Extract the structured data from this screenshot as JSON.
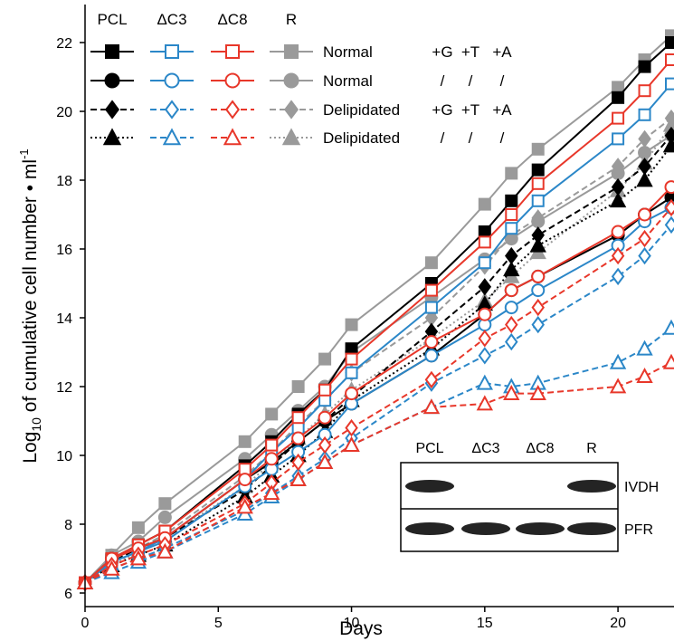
{
  "chart_data": {
    "type": "line",
    "xlabel": "Days",
    "ylabel_parts": {
      "pre": "Log",
      "sub": "10",
      "mid": " of cumulative cell number • ml",
      "sup": "-1"
    },
    "xlim": [
      0,
      22
    ],
    "ylim": [
      6,
      22.5
    ],
    "xticks": [
      0,
      5,
      10,
      15,
      20
    ],
    "yticks": [
      6,
      8,
      10,
      12,
      14,
      16,
      18,
      20,
      22
    ],
    "grid": false,
    "legend_position": "top-left",
    "legend": {
      "column_headers": [
        "PCL",
        "ΔC3",
        "ΔC8",
        "R"
      ],
      "rows": [
        {
          "condition": "Normal",
          "supplements": [
            "+G",
            "+T",
            "+A"
          ]
        },
        {
          "condition": "Normal",
          "supplements": [
            "/",
            "/",
            "/"
          ]
        },
        {
          "condition": "Delipidated",
          "supplements": [
            "+G",
            "+T",
            "+A"
          ]
        },
        {
          "condition": "Delipidated",
          "supplements": [
            "/",
            "/",
            "/"
          ]
        }
      ]
    },
    "strain_colors": {
      "PCL": "#000000",
      "dC3": "#2b87c8",
      "dC8": "#e8372a",
      "R": "#9a9a9a"
    },
    "series": [
      {
        "strain": "PCL",
        "row": 0,
        "marker": "square",
        "filled": true,
        "dash": "solid",
        "color": "#000000",
        "x": [
          0,
          1,
          2,
          3,
          6,
          7,
          8,
          9,
          10,
          13,
          15,
          16,
          17,
          20,
          21,
          22
        ],
        "y": [
          6.3,
          7.0,
          7.4,
          7.8,
          9.7,
          10.4,
          11.2,
          11.9,
          13.1,
          15.0,
          16.5,
          17.4,
          18.3,
          20.4,
          21.3,
          22.0
        ]
      },
      {
        "strain": "PCL",
        "row": 1,
        "marker": "circle",
        "filled": true,
        "dash": "solid",
        "color": "#000000",
        "x": [
          0,
          1,
          2,
          3,
          6,
          7,
          8,
          9,
          10,
          13,
          15,
          16,
          17,
          20,
          21,
          22
        ],
        "y": [
          6.3,
          7.0,
          7.3,
          7.6,
          9.3,
          9.8,
          10.4,
          11.0,
          11.5,
          12.9,
          14.1,
          14.8,
          15.2,
          16.4,
          17.0,
          17.5
        ]
      },
      {
        "strain": "PCL",
        "row": 2,
        "marker": "diamond",
        "filled": true,
        "dash": "dashed",
        "color": "#000000",
        "x": [
          0,
          1,
          2,
          3,
          6,
          7,
          8,
          9,
          10,
          13,
          15,
          16,
          17,
          20,
          21,
          22
        ],
        "y": [
          6.3,
          6.9,
          7.3,
          7.6,
          9.0,
          9.7,
          10.4,
          11.0,
          11.7,
          13.6,
          14.9,
          15.8,
          16.4,
          17.8,
          18.4,
          19.3
        ]
      },
      {
        "strain": "PCL",
        "row": 3,
        "marker": "triangle",
        "filled": true,
        "dash": "dotted",
        "color": "#000000",
        "x": [
          0,
          1,
          2,
          3,
          6,
          7,
          8,
          9,
          10,
          13,
          15,
          16,
          17,
          20,
          21,
          22
        ],
        "y": [
          6.3,
          6.8,
          7.1,
          7.4,
          8.8,
          9.4,
          10.0,
          10.7,
          11.6,
          13.1,
          14.4,
          15.4,
          16.1,
          17.4,
          18.0,
          19.0
        ]
      },
      {
        "strain": "dC3",
        "row": 0,
        "marker": "square",
        "filled": false,
        "dash": "solid",
        "color": "#2b87c8",
        "x": [
          0,
          1,
          2,
          3,
          6,
          7,
          8,
          9,
          10,
          13,
          15,
          16,
          17,
          20,
          21,
          22
        ],
        "y": [
          6.3,
          6.9,
          7.2,
          7.6,
          9.3,
          10.1,
          10.8,
          11.6,
          12.4,
          14.3,
          15.6,
          16.6,
          17.4,
          19.2,
          19.9,
          20.8
        ]
      },
      {
        "strain": "dC3",
        "row": 1,
        "marker": "circle",
        "filled": false,
        "dash": "solid",
        "color": "#2b87c8",
        "x": [
          0,
          1,
          2,
          3,
          6,
          7,
          8,
          9,
          10,
          13,
          15,
          16,
          17,
          20,
          21,
          22
        ],
        "y": [
          6.3,
          6.9,
          7.2,
          7.5,
          9.1,
          9.6,
          10.1,
          10.6,
          11.5,
          12.9,
          13.8,
          14.3,
          14.8,
          16.1,
          16.8,
          17.2
        ]
      },
      {
        "strain": "dC3",
        "row": 2,
        "marker": "diamond",
        "filled": false,
        "dash": "dashed",
        "color": "#2b87c8",
        "x": [
          0,
          1,
          2,
          3,
          6,
          7,
          8,
          9,
          10,
          13,
          15,
          16,
          17,
          20,
          21,
          22
        ],
        "y": [
          6.3,
          6.7,
          7.0,
          7.3,
          8.4,
          8.9,
          9.4,
          9.9,
          10.5,
          12.1,
          12.9,
          13.3,
          13.8,
          15.2,
          15.8,
          16.7
        ]
      },
      {
        "strain": "dC3",
        "row": 3,
        "marker": "triangle",
        "filled": false,
        "dash": "dashed",
        "color": "#2b87c8",
        "x": [
          0,
          1,
          2,
          3,
          6,
          7,
          8,
          9,
          10,
          13,
          15,
          16,
          17,
          20,
          21,
          22
        ],
        "y": [
          6.3,
          6.6,
          6.9,
          7.2,
          8.3,
          8.8,
          9.3,
          9.8,
          10.3,
          11.4,
          12.1,
          12.0,
          12.1,
          12.7,
          13.1,
          13.7
        ]
      },
      {
        "strain": "dC8",
        "row": 0,
        "marker": "square",
        "filled": false,
        "dash": "solid",
        "color": "#e8372a",
        "x": [
          0,
          1,
          2,
          3,
          6,
          7,
          8,
          9,
          10,
          13,
          15,
          16,
          17,
          20,
          21,
          22
        ],
        "y": [
          6.3,
          7.0,
          7.4,
          7.8,
          9.6,
          10.3,
          11.1,
          11.9,
          12.8,
          14.8,
          16.2,
          17.0,
          17.9,
          19.8,
          20.6,
          21.5
        ]
      },
      {
        "strain": "dC8",
        "row": 1,
        "marker": "circle",
        "filled": false,
        "dash": "solid",
        "color": "#e8372a",
        "x": [
          0,
          1,
          2,
          3,
          6,
          7,
          8,
          9,
          10,
          13,
          15,
          16,
          17,
          20,
          21,
          22
        ],
        "y": [
          6.3,
          7.0,
          7.3,
          7.6,
          9.3,
          9.9,
          10.5,
          11.1,
          11.8,
          13.3,
          14.1,
          14.8,
          15.2,
          16.5,
          17.0,
          17.8
        ]
      },
      {
        "strain": "dC8",
        "row": 2,
        "marker": "diamond",
        "filled": false,
        "dash": "dashed",
        "color": "#e8372a",
        "x": [
          0,
          1,
          2,
          3,
          6,
          7,
          8,
          9,
          10,
          13,
          15,
          16,
          17,
          20,
          21,
          22
        ],
        "y": [
          6.3,
          6.8,
          7.1,
          7.4,
          8.6,
          9.2,
          9.8,
          10.3,
          10.8,
          12.2,
          13.4,
          13.8,
          14.3,
          15.8,
          16.3,
          17.2
        ]
      },
      {
        "strain": "dC8",
        "row": 3,
        "marker": "triangle",
        "filled": false,
        "dash": "dashed",
        "color": "#e8372a",
        "x": [
          0,
          1,
          2,
          3,
          6,
          7,
          8,
          9,
          10,
          13,
          15,
          16,
          17,
          20,
          21,
          22
        ],
        "y": [
          6.3,
          6.7,
          7.0,
          7.2,
          8.5,
          8.9,
          9.3,
          9.8,
          10.3,
          11.4,
          11.5,
          11.8,
          11.8,
          12.0,
          12.3,
          12.7
        ]
      },
      {
        "strain": "R",
        "row": 0,
        "marker": "square",
        "filled": true,
        "dash": "solid",
        "color": "#9a9a9a",
        "x": [
          0,
          1,
          2,
          3,
          6,
          7,
          8,
          9,
          10,
          13,
          15,
          16,
          17,
          20,
          21,
          22
        ],
        "y": [
          6.3,
          7.1,
          7.9,
          8.6,
          10.4,
          11.2,
          12.0,
          12.8,
          13.8,
          15.6,
          17.3,
          18.2,
          18.9,
          20.7,
          21.5,
          22.2
        ]
      },
      {
        "strain": "R",
        "row": 1,
        "marker": "circle",
        "filled": true,
        "dash": "solid",
        "color": "#9a9a9a",
        "x": [
          0,
          1,
          2,
          3,
          6,
          7,
          8,
          9,
          10,
          13,
          15,
          16,
          17,
          20,
          21,
          22
        ],
        "y": [
          6.3,
          7.1,
          7.5,
          8.2,
          9.9,
          10.6,
          11.3,
          12.0,
          13.0,
          14.6,
          15.7,
          16.3,
          16.8,
          18.2,
          18.8,
          19.3
        ]
      },
      {
        "strain": "R",
        "row": 2,
        "marker": "diamond",
        "filled": true,
        "dash": "dashed",
        "color": "#9a9a9a",
        "x": [
          0,
          1,
          2,
          3,
          6,
          7,
          8,
          9,
          10,
          13,
          15,
          16,
          17,
          20,
          21,
          22
        ],
        "y": [
          6.3,
          6.9,
          7.3,
          7.7,
          9.4,
          10.1,
          10.9,
          11.6,
          12.4,
          14.0,
          15.5,
          16.4,
          16.9,
          18.4,
          19.2,
          19.8
        ]
      },
      {
        "strain": "R",
        "row": 3,
        "marker": "triangle",
        "filled": true,
        "dash": "dotted",
        "color": "#9a9a9a",
        "x": [
          0,
          1,
          2,
          3,
          6,
          7,
          8,
          9,
          10,
          13,
          15,
          16,
          17,
          20,
          21,
          22
        ],
        "y": [
          6.3,
          6.8,
          7.2,
          7.6,
          9.1,
          9.8,
          10.5,
          11.2,
          11.9,
          13.4,
          14.5,
          15.2,
          15.9,
          17.7,
          18.5,
          19.6
        ]
      }
    ],
    "inset": {
      "type": "western blot",
      "lanes": [
        "PCL",
        "ΔC3",
        "ΔC8",
        "R"
      ],
      "rows": [
        {
          "label": "IVDH",
          "bands": [
            true,
            false,
            false,
            true
          ]
        },
        {
          "label": "PFR",
          "bands": [
            true,
            true,
            true,
            true
          ]
        }
      ]
    }
  }
}
